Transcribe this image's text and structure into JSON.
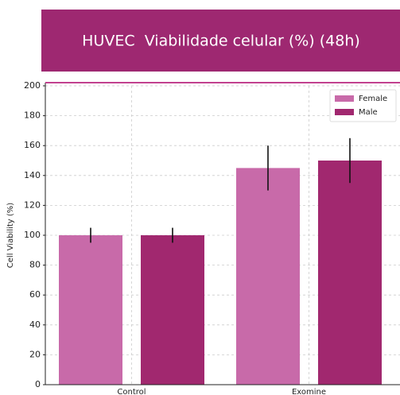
{
  "chart_data": {
    "type": "bar",
    "title": "HUVEC  Viabilidade celular (%) (48h)",
    "ylabel": "Cell Viability (%)",
    "categories": [
      "Control",
      "Exomine"
    ],
    "series": [
      {
        "name": "Female",
        "color": "#c86aa9",
        "values": [
          100,
          145
        ],
        "errors": [
          5,
          15
        ]
      },
      {
        "name": "Male",
        "color": "#a1286f",
        "values": [
          100,
          150
        ],
        "errors": [
          5,
          15
        ]
      }
    ],
    "ylim": [
      0,
      200
    ],
    "yticks": [
      0,
      20,
      40,
      60,
      80,
      100,
      120,
      140,
      160,
      180,
      200
    ],
    "grid": true,
    "legend": "upper right"
  }
}
